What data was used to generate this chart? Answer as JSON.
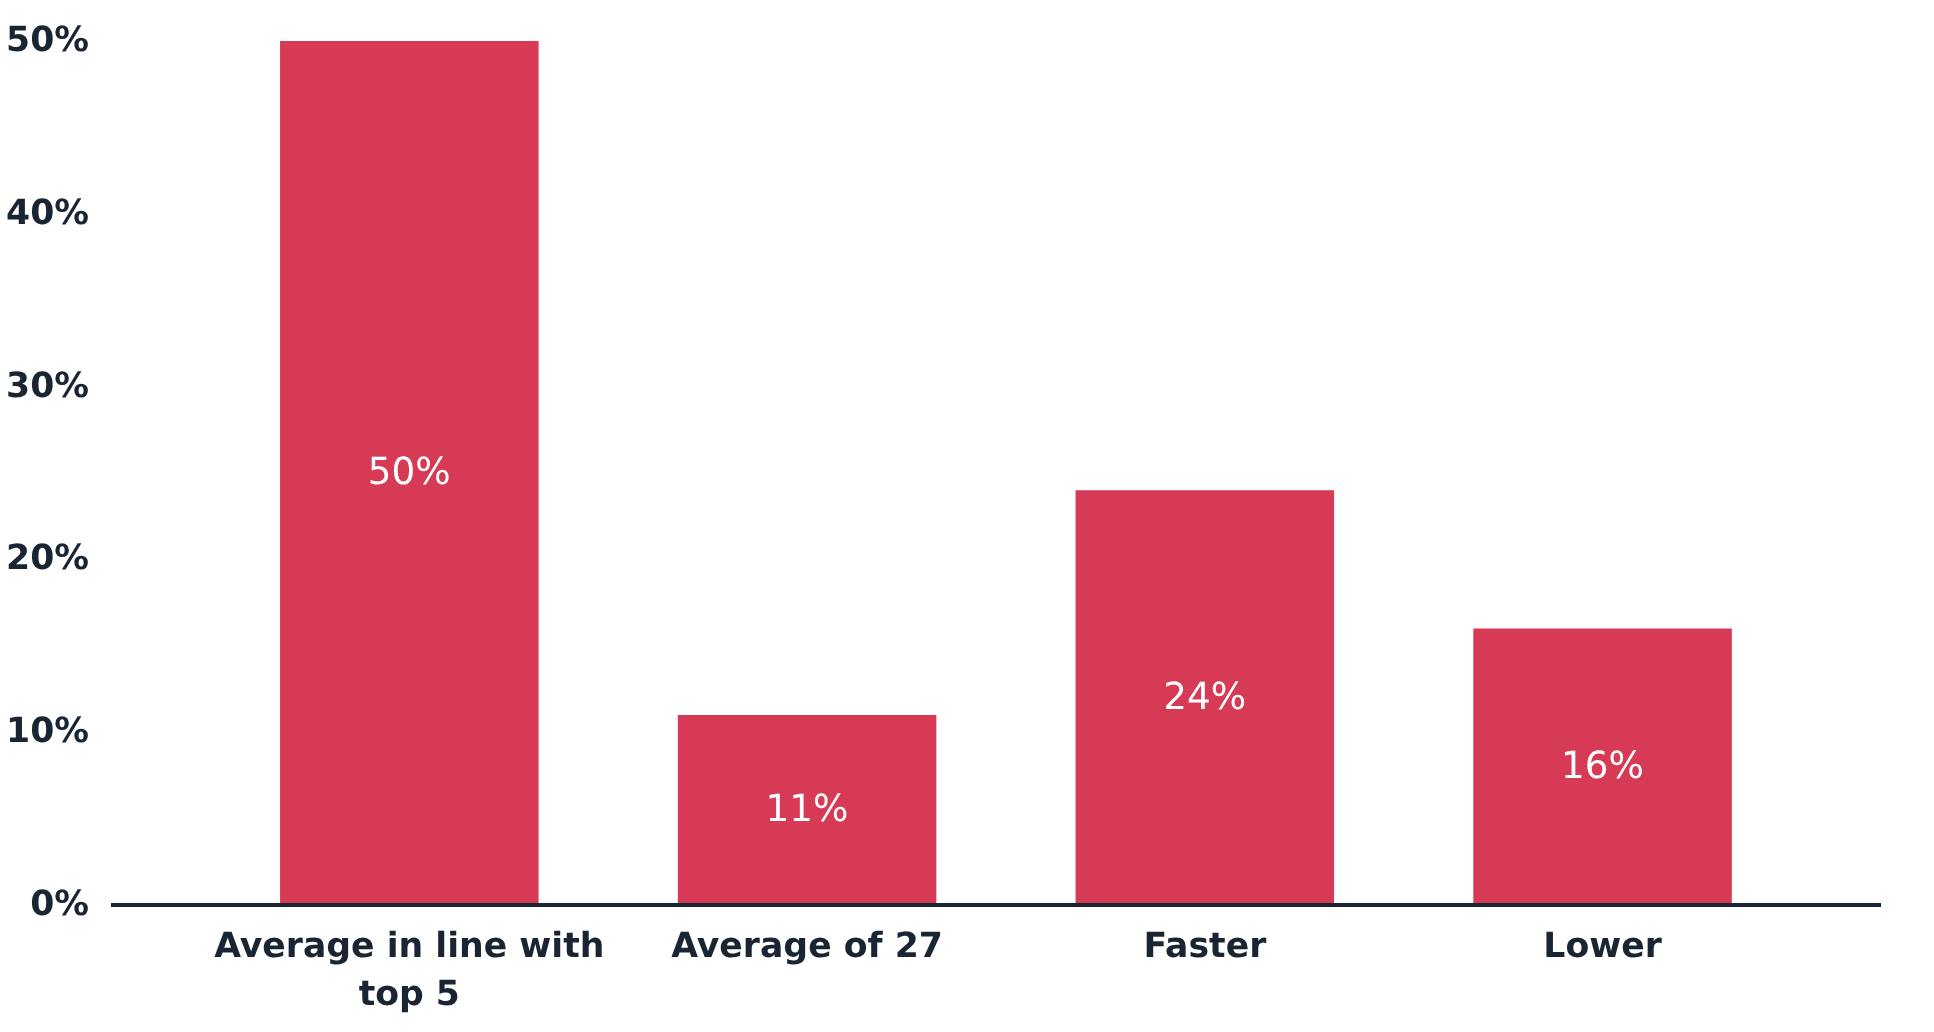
{
  "chart_data": {
    "type": "bar",
    "categories": [
      "Average in line with top 5",
      "Average of 27",
      "Faster",
      "Lower"
    ],
    "values": [
      50,
      11,
      24,
      16
    ],
    "color": "#d63a55",
    "value_labels": [
      "50%",
      "11%",
      "24%",
      "16%"
    ],
    "ylim": [
      0,
      50
    ],
    "yticks": [
      {
        "value": 0,
        "label": "0%"
      },
      {
        "value": 10,
        "label": "10%"
      },
      {
        "value": 20,
        "label": "20%"
      },
      {
        "value": 30,
        "label": "30%"
      },
      {
        "value": 40,
        "label": "40%"
      },
      {
        "value": 50,
        "label": "50%"
      }
    ],
    "grid": false
  }
}
